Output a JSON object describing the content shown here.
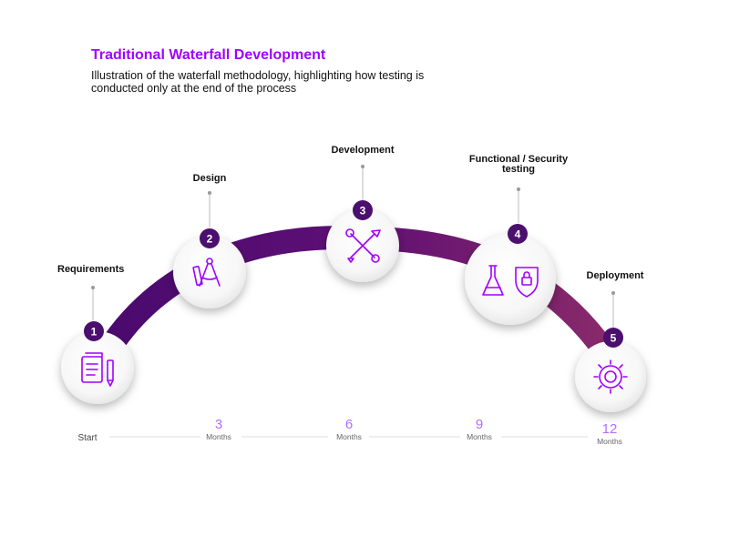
{
  "header": {
    "title": "Traditional Waterfall Development",
    "subtitle": "Illustration of the waterfall methodology, highlighting how testing is conducted only at the end of the process"
  },
  "phases": [
    {
      "number": "1",
      "label": "Requirements",
      "icon": "document-pen-icon"
    },
    {
      "number": "2",
      "label": "Design",
      "icon": "compass-pencil-icon"
    },
    {
      "number": "3",
      "label": "Development",
      "icon": "wrench-tools-icon"
    },
    {
      "number": "4",
      "label_line1": "Functional / Security",
      "label_line2": "testing",
      "icon": "flask-shield-icon"
    },
    {
      "number": "5",
      "label": "Deployment",
      "icon": "gear-icon"
    }
  ],
  "timeline": {
    "start": "Start",
    "marks": [
      {
        "value": "3",
        "unit": "Months"
      },
      {
        "value": "6",
        "unit": "Months"
      },
      {
        "value": "9",
        "unit": "Months"
      },
      {
        "value": "12",
        "unit": "Months"
      }
    ]
  },
  "colors": {
    "accent": "#a100ff",
    "badge": "#4b0f6e",
    "arc_start": "#4a0a6e",
    "arc_end": "#8a2a6a"
  }
}
